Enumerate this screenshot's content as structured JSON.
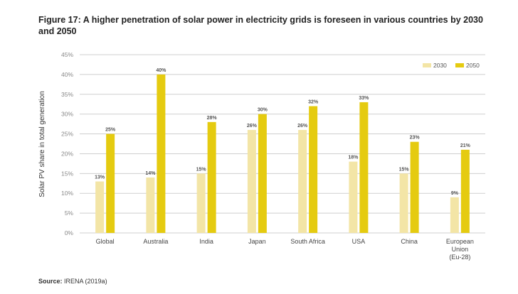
{
  "title": "Figure 17: A higher penetration of solar power in electricity grids is foreseen in various countries by 2030 and 2050",
  "source": {
    "label": "Source:",
    "text": "IRENA (2019a)"
  },
  "chart_data": {
    "type": "bar",
    "title": "Figure 17: A higher penetration of solar power in electricity grids is foreseen in various countries by 2030 and 2050",
    "ylabel": "Solar PV share in total generation",
    "xlabel": "",
    "ylim": [
      0,
      45
    ],
    "yticks": [
      "0%",
      "5%",
      "10%",
      "15%",
      "20%",
      "25%",
      "30%",
      "35%",
      "40%",
      "45%"
    ],
    "grid": "horizontal",
    "legend": "top-right",
    "categories": [
      "Global",
      "Australia",
      "India",
      "Japan",
      "South Africa",
      "USA",
      "China",
      "European Union (Eu-28)"
    ],
    "category_lines": [
      [
        "Global"
      ],
      [
        "Australia"
      ],
      [
        "India"
      ],
      [
        "Japan"
      ],
      [
        "South Africa"
      ],
      [
        "USA"
      ],
      [
        "China"
      ],
      [
        "European",
        "Union",
        "(Eu-28)"
      ]
    ],
    "series": [
      {
        "name": "2030",
        "color": "#f3e5a6",
        "values": [
          13,
          14,
          15,
          26,
          26,
          18,
          15,
          9
        ],
        "labels": [
          "13%",
          "14%",
          "15%",
          "26%",
          "26%",
          "18%",
          "15%",
          "9%"
        ]
      },
      {
        "name": "2050",
        "color": "#e5cb10",
        "values": [
          25,
          40,
          28,
          30,
          32,
          33,
          23,
          21
        ],
        "labels": [
          "25%",
          "40%",
          "28%",
          "30%",
          "32%",
          "33%",
          "23%",
          "21%"
        ]
      }
    ]
  }
}
